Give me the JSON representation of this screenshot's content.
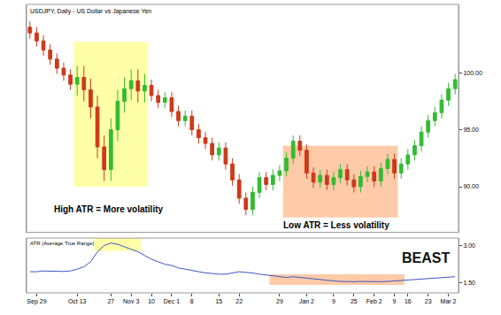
{
  "chart_data": [
    {
      "type": "candlestick",
      "title": "USDJPY, Daily - US Dollar vs Japanese Yen",
      "categories": [
        null,
        "Sep 29",
        null,
        null,
        null,
        null,
        null,
        "Oct 13",
        null,
        null,
        null,
        null,
        "27",
        null,
        null,
        "Nov 3",
        null,
        null,
        "10",
        null,
        null,
        "Dec 1",
        null,
        null,
        "8",
        null,
        null,
        null,
        "15",
        null,
        null,
        "22",
        null,
        null,
        null,
        null,
        null,
        "29",
        null,
        null,
        null,
        "Jan 2",
        null,
        null,
        null,
        "9",
        null,
        null,
        "25",
        null,
        null,
        "Feb 2",
        null,
        null,
        "9",
        null,
        "16",
        null,
        null,
        "23",
        null,
        null,
        "Mar 2",
        null
      ],
      "open": [
        104.0,
        103.5,
        102.8,
        102.0,
        101.2,
        100.4,
        99.8,
        99.0,
        99.6,
        98.5,
        97.0,
        93.5,
        91.5,
        95.0,
        97.5,
        98.6,
        99.3,
        98.4,
        98.9,
        98.0,
        97.4,
        97.8,
        96.6,
        95.8,
        96.2,
        95.0,
        94.3,
        93.8,
        92.8,
        93.4,
        92.0,
        90.6,
        89.0,
        88.0,
        89.5,
        90.8,
        90.2,
        91.0,
        91.4,
        92.5,
        94.0,
        93.2,
        91.2,
        90.4,
        91.0,
        90.2,
        90.8,
        91.5,
        90.6,
        90.0,
        90.9,
        91.3,
        90.5,
        91.6,
        92.4,
        91.2,
        92.0,
        92.8,
        93.6,
        94.8,
        95.8,
        96.5,
        97.6,
        98.6
      ],
      "high": [
        104.5,
        104.0,
        103.3,
        102.5,
        101.7,
        100.9,
        100.3,
        100.6,
        100.6,
        99.5,
        98.0,
        94.5,
        96.0,
        98.5,
        99.6,
        100.3,
        100.3,
        99.9,
        99.4,
        98.5,
        98.3,
        98.3,
        97.1,
        96.7,
        96.7,
        95.5,
        94.8,
        94.3,
        93.9,
        93.9,
        92.5,
        91.1,
        89.5,
        90.0,
        91.3,
        91.3,
        91.5,
        91.9,
        93.0,
        94.5,
        94.5,
        93.7,
        91.7,
        91.5,
        91.5,
        91.3,
        92.0,
        92.0,
        91.1,
        91.4,
        91.8,
        91.8,
        92.1,
        92.9,
        92.9,
        92.5,
        93.3,
        94.1,
        95.3,
        96.3,
        97.0,
        98.1,
        99.1,
        99.9
      ],
      "low": [
        103.0,
        102.3,
        101.5,
        100.7,
        99.9,
        99.3,
        98.5,
        98.0,
        97.5,
        96.0,
        92.5,
        90.5,
        90.5,
        94.0,
        96.5,
        97.6,
        97.4,
        97.4,
        97.5,
        96.9,
        96.9,
        96.1,
        95.3,
        95.3,
        94.5,
        93.8,
        93.3,
        92.3,
        92.3,
        91.5,
        90.1,
        88.5,
        87.5,
        87.5,
        89.0,
        89.7,
        89.7,
        90.5,
        90.9,
        92.0,
        92.7,
        90.7,
        89.9,
        89.9,
        89.7,
        89.7,
        90.3,
        90.1,
        89.5,
        89.5,
        90.4,
        90.0,
        90.0,
        91.1,
        90.7,
        90.7,
        91.5,
        92.3,
        93.1,
        94.3,
        95.3,
        96.0,
        97.1,
        98.1
      ],
      "close": [
        103.5,
        102.8,
        102.0,
        101.2,
        100.4,
        99.8,
        99.0,
        99.6,
        98.5,
        97.0,
        93.5,
        91.5,
        95.0,
        97.5,
        98.6,
        99.3,
        98.4,
        98.9,
        98.0,
        97.4,
        97.8,
        96.6,
        95.8,
        96.2,
        95.0,
        94.3,
        93.8,
        92.8,
        93.4,
        92.0,
        90.6,
        89.0,
        88.0,
        89.5,
        90.8,
        90.2,
        91.0,
        91.4,
        92.5,
        94.0,
        93.2,
        91.2,
        90.4,
        91.0,
        90.2,
        90.8,
        91.5,
        90.6,
        90.0,
        90.9,
        91.3,
        90.5,
        91.6,
        92.4,
        91.2,
        92.0,
        92.8,
        93.6,
        94.8,
        95.8,
        96.5,
        97.6,
        98.6,
        99.4
      ],
      "colors": [
        "#33bb33",
        "#cc3a1a"
      ],
      "ylim": [
        86,
        106
      ],
      "yticks": [
        {
          "value": 90,
          "label": "90.00"
        },
        {
          "value": 95,
          "label": "95.00"
        },
        {
          "value": 100,
          "label": "100.00"
        }
      ],
      "grid": false,
      "regions": [
        {
          "start": 7,
          "end": 17,
          "low": 90,
          "high": 102.7,
          "color": "#ffffa8",
          "text": "High ATR = More volatility"
        },
        {
          "start": 38,
          "end": 54,
          "low": 87.3,
          "high": 93.6,
          "color": "#ffcaa8",
          "text": "Low ATR = Less volatility"
        }
      ]
    },
    {
      "type": "line",
      "title": "ATR (Average True Range)",
      "categories": [
        null,
        "Sep 29",
        null,
        null,
        null,
        null,
        null,
        "Oct 13",
        null,
        null,
        null,
        null,
        "27",
        null,
        null,
        "Nov 3",
        null,
        null,
        "10",
        null,
        null,
        "Dec 1",
        null,
        null,
        "8",
        null,
        null,
        null,
        "15",
        null,
        null,
        "22",
        null,
        null,
        null,
        null,
        null,
        "29",
        null,
        null,
        null,
        "Jan 2",
        null,
        null,
        null,
        "9",
        null,
        null,
        "25",
        null,
        null,
        "Feb 2",
        null,
        null,
        "9",
        null,
        "16",
        null,
        null,
        "23",
        null,
        null,
        "Mar 2",
        null
      ],
      "values": [
        1.95,
        1.95,
        1.98,
        1.97,
        1.95,
        1.96,
        1.98,
        2.05,
        2.15,
        2.35,
        2.75,
        3.0,
        3.1,
        3.05,
        2.95,
        2.85,
        2.75,
        2.6,
        2.45,
        2.35,
        2.25,
        2.2,
        2.1,
        2.05,
        2.0,
        1.95,
        1.9,
        1.88,
        1.85,
        1.85,
        1.9,
        1.95,
        1.92,
        1.9,
        1.85,
        1.82,
        1.8,
        1.75,
        1.72,
        1.75,
        1.72,
        1.68,
        1.65,
        1.62,
        1.6,
        1.58,
        1.56,
        1.55,
        1.55,
        1.56,
        1.55,
        1.54,
        1.55,
        1.56,
        1.58,
        1.6,
        1.62,
        1.64,
        1.66,
        1.68,
        1.7,
        1.72,
        1.74,
        1.75
      ],
      "color": "#3a57c4",
      "ylim": [
        1.1,
        3.3
      ],
      "yticks": [
        {
          "value": 1.5,
          "label": "1.50"
        },
        {
          "value": 3,
          "label": "3.00"
        }
      ],
      "grid": false,
      "regions": [
        {
          "start": 10,
          "end": 16,
          "low": 2.78,
          "high": 3.3,
          "color": "#ffffa8"
        },
        {
          "start": 36,
          "end": 55,
          "low": 1.42,
          "high": 1.85,
          "color": "#ffcaa8"
        }
      ]
    }
  ],
  "logo": "BEAST"
}
